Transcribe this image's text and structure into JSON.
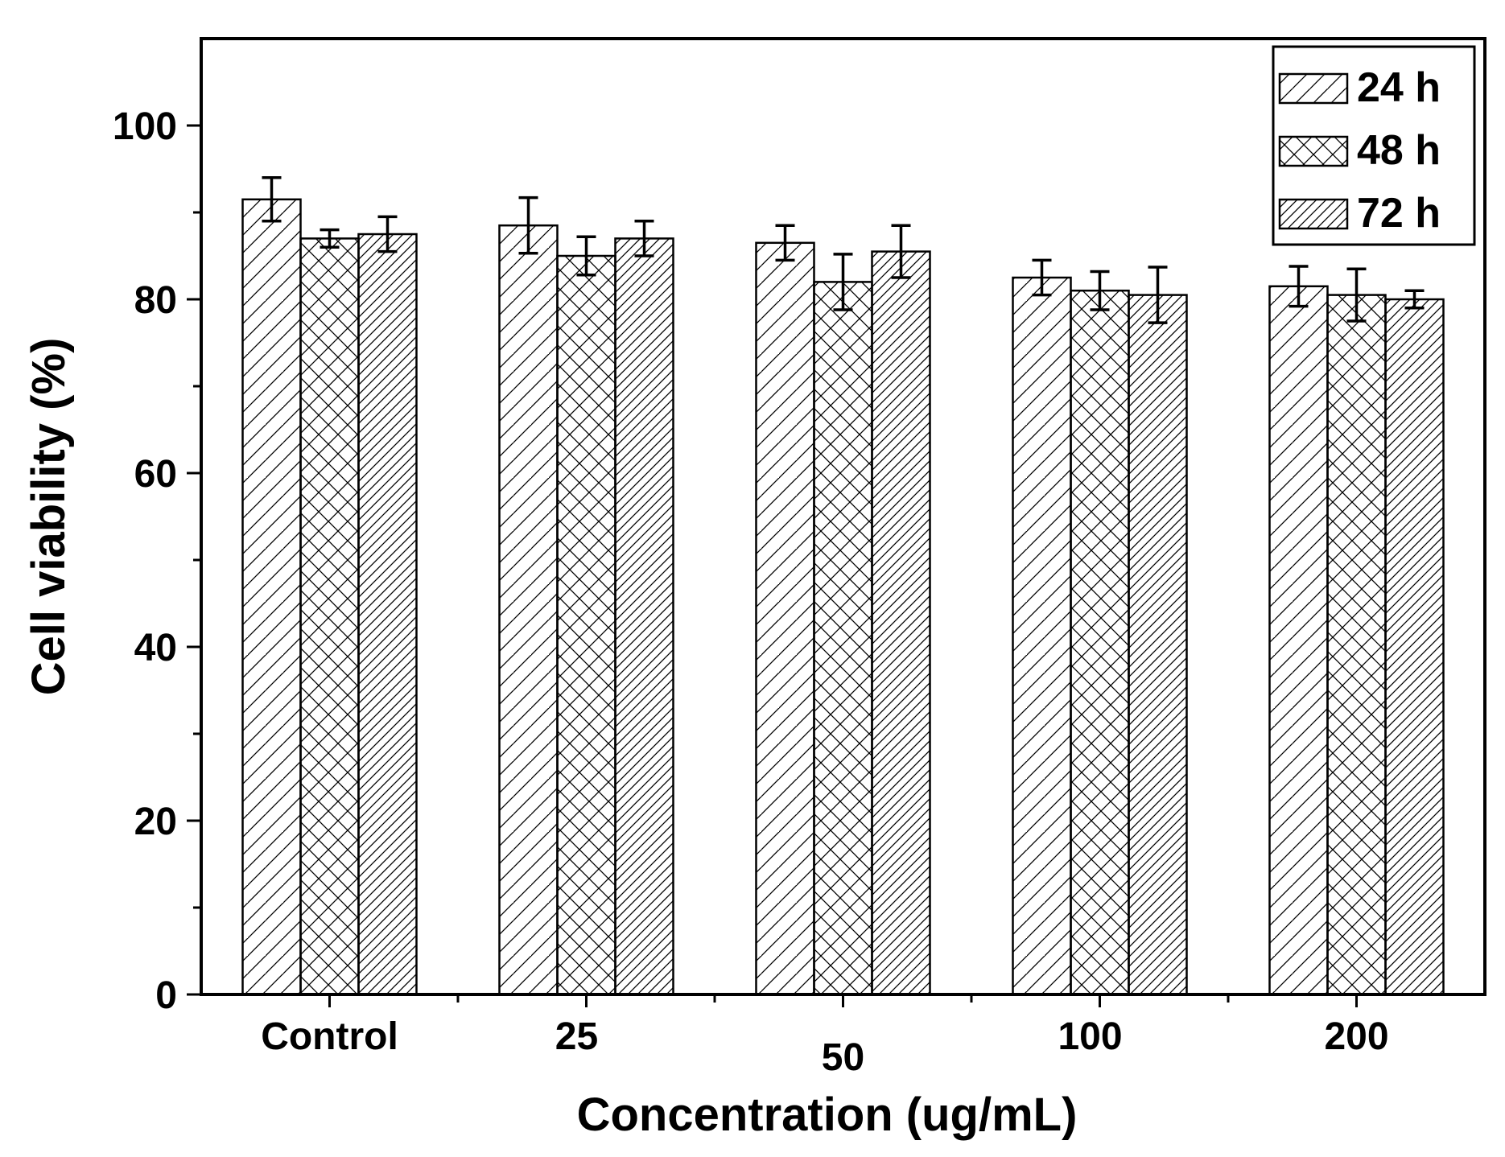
{
  "chart_data": {
    "type": "bar",
    "xlabel": "Concentration (ug/mL)",
    "ylabel": "Cell viability (%)",
    "ylim": [
      0,
      110
    ],
    "yticks": [
      0,
      20,
      40,
      60,
      80,
      100
    ],
    "categories": [
      "Control",
      "25",
      "50",
      "100",
      "200"
    ],
    "series": [
      {
        "name": "24 h",
        "pattern": "diagonal",
        "values": [
          91.5,
          88.5,
          86.5,
          82.5,
          81.5
        ],
        "errors": [
          2.5,
          3.2,
          2.0,
          2.0,
          2.3
        ]
      },
      {
        "name": "48 h",
        "pattern": "crosshatch",
        "values": [
          87.0,
          85.0,
          82.0,
          81.0,
          80.5
        ],
        "errors": [
          1.0,
          2.2,
          3.2,
          2.2,
          3.0
        ]
      },
      {
        "name": "72 h",
        "pattern": "dense-diagonal",
        "values": [
          87.5,
          87.0,
          85.5,
          80.5,
          80.0
        ],
        "errors": [
          2.0,
          2.0,
          3.0,
          3.2,
          1.0
        ]
      }
    ],
    "error_bars": true,
    "grid": false,
    "legend_position": "top-right",
    "colors": {
      "stroke": "#000000",
      "fill": "#ffffff"
    }
  }
}
